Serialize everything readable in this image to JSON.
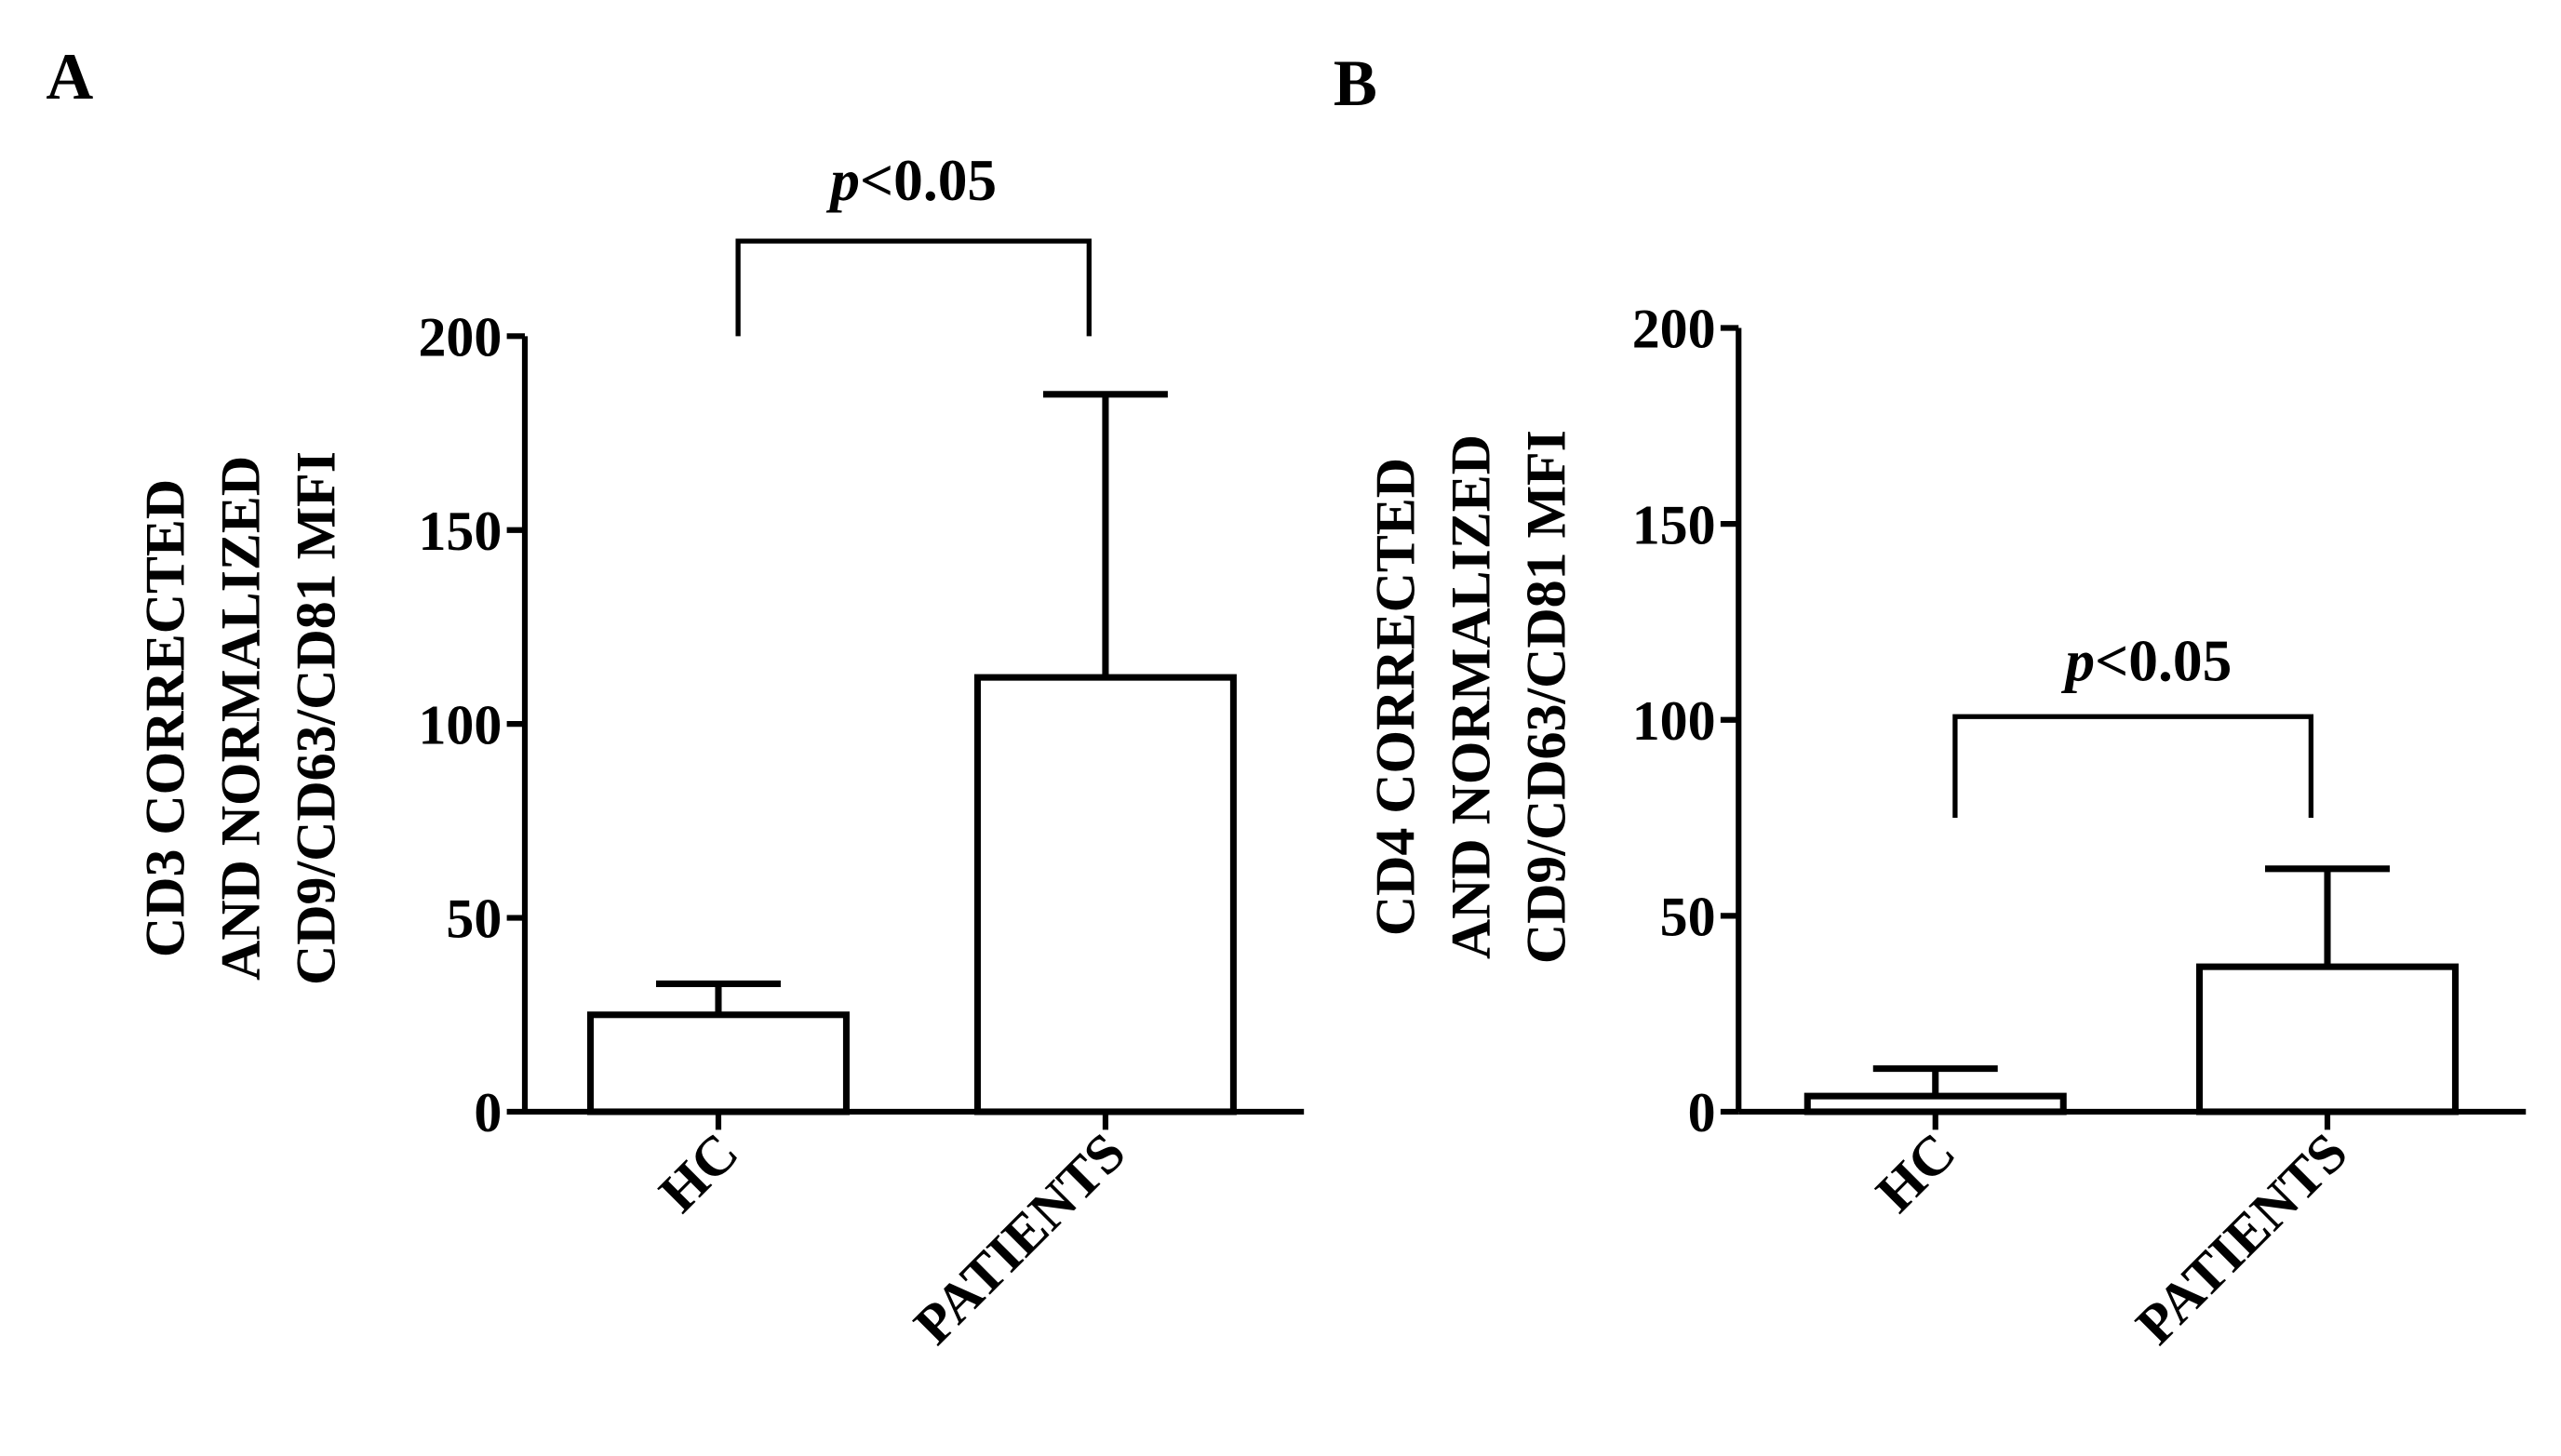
{
  "chart_data": [
    {
      "panel_label": "A",
      "type": "bar",
      "categories": [
        "HC",
        "PATIENTS"
      ],
      "values": [
        25,
        112
      ],
      "error_upper": [
        33,
        185
      ],
      "ylabel_lines": [
        "CD3 CORRECTED",
        "AND NORMALIZED",
        "CD9/CD63/CD81 MFI"
      ],
      "ylim": [
        0,
        200
      ],
      "yticks": [
        0,
        50,
        100,
        150,
        200
      ],
      "significance": {
        "text_italic": "p",
        "text_rest": "<0.05",
        "between": [
          "HC",
          "PATIENTS"
        ],
        "bracket_bottom": 200
      }
    },
    {
      "panel_label": "B",
      "type": "bar",
      "categories": [
        "HC",
        "PATIENTS"
      ],
      "values": [
        4,
        37
      ],
      "error_upper": [
        11,
        62
      ],
      "ylabel_lines": [
        "CD4 CORRECTED",
        "AND NORMALIZED",
        "CD9/CD63/CD81 MFI"
      ],
      "ylim": [
        0,
        200
      ],
      "yticks": [
        0,
        50,
        100,
        150,
        200
      ],
      "significance": {
        "text_italic": "p",
        "text_rest": "<0.05",
        "between": [
          "HC",
          "PATIENTS"
        ],
        "bracket_bottom": 75
      }
    }
  ]
}
